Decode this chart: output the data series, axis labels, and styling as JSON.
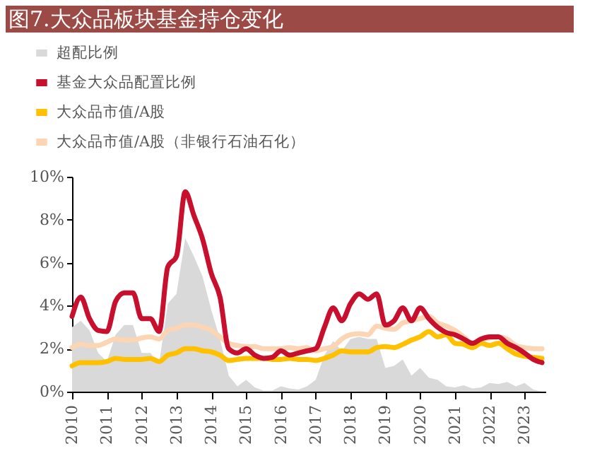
{
  "chart_data": {
    "type": "line",
    "title": "图7.大众品板块基金持仓变化",
    "x": [
      2010,
      2010.25,
      2010.5,
      2010.75,
      2011,
      2011.25,
      2011.5,
      2011.75,
      2012,
      2012.25,
      2012.5,
      2012.75,
      2013,
      2013.25,
      2013.5,
      2013.75,
      2014,
      2014.25,
      2014.5,
      2014.75,
      2015,
      2015.25,
      2015.5,
      2015.75,
      2016,
      2016.25,
      2016.5,
      2016.75,
      2017,
      2017.25,
      2017.5,
      2017.75,
      2018,
      2018.25,
      2018.5,
      2018.75,
      2019,
      2019.25,
      2019.5,
      2019.75,
      2020,
      2020.25,
      2020.5,
      2020.75,
      2021,
      2021.25,
      2021.5,
      2021.75,
      2022,
      2022.25,
      2022.5,
      2022.75,
      2023,
      2023.25,
      2023.5
    ],
    "series": [
      {
        "name": "超配比例",
        "type": "area",
        "color": "#d9d9d9",
        "values": [
          3.0,
          3.3,
          2.85,
          1.8,
          1.4,
          2.65,
          3.1,
          3.1,
          1.8,
          1.8,
          1.3,
          4.1,
          4.55,
          7.15,
          6.3,
          5.35,
          3.8,
          2.45,
          0.75,
          0.25,
          0.55,
          0.2,
          0.05,
          0.05,
          0.25,
          0.15,
          0.1,
          0.25,
          0.55,
          1.7,
          2.35,
          1.9,
          2.45,
          2.55,
          2.45,
          2.45,
          1.1,
          1.2,
          1.5,
          0.75,
          1.1,
          0.65,
          0.55,
          0.25,
          0.2,
          0.3,
          0.15,
          0.2,
          0.4,
          0.35,
          0.45,
          0.25,
          0.4,
          0.1,
          0
        ]
      },
      {
        "name": "基金大众品配置比例",
        "color": "#c8102e",
        "values": [
          3.5,
          4.4,
          3.4,
          2.85,
          2.8,
          4.2,
          4.6,
          4.6,
          3.4,
          3.4,
          2.8,
          5.8,
          6.3,
          9.3,
          8.2,
          7.1,
          5.5,
          4.4,
          2.0,
          1.8,
          2.0,
          1.7,
          1.55,
          1.6,
          1.9,
          1.7,
          1.8,
          1.9,
          2.0,
          3.0,
          3.9,
          3.3,
          4.1,
          4.55,
          4.3,
          4.55,
          3.1,
          3.3,
          3.9,
          3.3,
          3.9,
          3.4,
          3.0,
          2.75,
          2.65,
          2.45,
          2.25,
          2.45,
          2.55,
          2.55,
          2.25,
          2.05,
          1.8,
          1.5,
          1.35
        ]
      },
      {
        "name": "大众品市值/A股",
        "color": "#ffc000",
        "values": [
          1.2,
          1.35,
          1.35,
          1.35,
          1.4,
          1.55,
          1.5,
          1.5,
          1.5,
          1.55,
          1.4,
          1.7,
          1.8,
          2.0,
          2.0,
          1.9,
          1.85,
          1.7,
          1.45,
          1.5,
          1.55,
          1.55,
          1.55,
          1.5,
          1.5,
          1.55,
          1.5,
          1.5,
          1.45,
          1.55,
          1.7,
          1.9,
          1.85,
          1.85,
          1.85,
          2.05,
          2.1,
          2.05,
          2.2,
          2.4,
          2.55,
          2.8,
          2.55,
          2.65,
          2.25,
          2.2,
          2.05,
          2.25,
          2.15,
          2.25,
          2.0,
          1.75,
          1.65,
          1.6,
          1.55
        ]
      },
      {
        "name": "大众品市值/A股（非银行石油石化）",
        "color": "#fcd5b4",
        "values": [
          2.05,
          2.2,
          2.15,
          2.15,
          2.3,
          2.45,
          2.4,
          2.4,
          2.5,
          2.55,
          2.45,
          2.85,
          2.95,
          3.1,
          3.1,
          3.0,
          2.85,
          2.55,
          2.25,
          2.15,
          2.1,
          2.1,
          2.0,
          2.0,
          2.0,
          2.05,
          2.0,
          2.05,
          1.9,
          2.0,
          2.1,
          2.45,
          2.65,
          2.7,
          2.65,
          3.05,
          2.95,
          2.9,
          3.2,
          3.3,
          3.4,
          3.5,
          3.2,
          3.05,
          2.85,
          2.55,
          2.25,
          2.45,
          2.5,
          2.55,
          2.45,
          2.15,
          2.05,
          2.0,
          2.0
        ]
      }
    ],
    "xlim": [
      2010,
      2023.6
    ],
    "xticks": [
      2010,
      2011,
      2012,
      2013,
      2014,
      2015,
      2016,
      2017,
      2018,
      2019,
      2020,
      2021,
      2022,
      2023
    ],
    "ylim": [
      0,
      10
    ],
    "yticks": [
      {
        "value": 0,
        "label": "0%"
      },
      {
        "value": 2,
        "label": "2%"
      },
      {
        "value": 4,
        "label": "4%"
      },
      {
        "value": 6,
        "label": "6%"
      },
      {
        "value": 8,
        "label": "8%"
      },
      {
        "value": 10,
        "label": "10%"
      }
    ],
    "grid": false,
    "legend": "top",
    "marker": "none",
    "line_style": "solid"
  }
}
